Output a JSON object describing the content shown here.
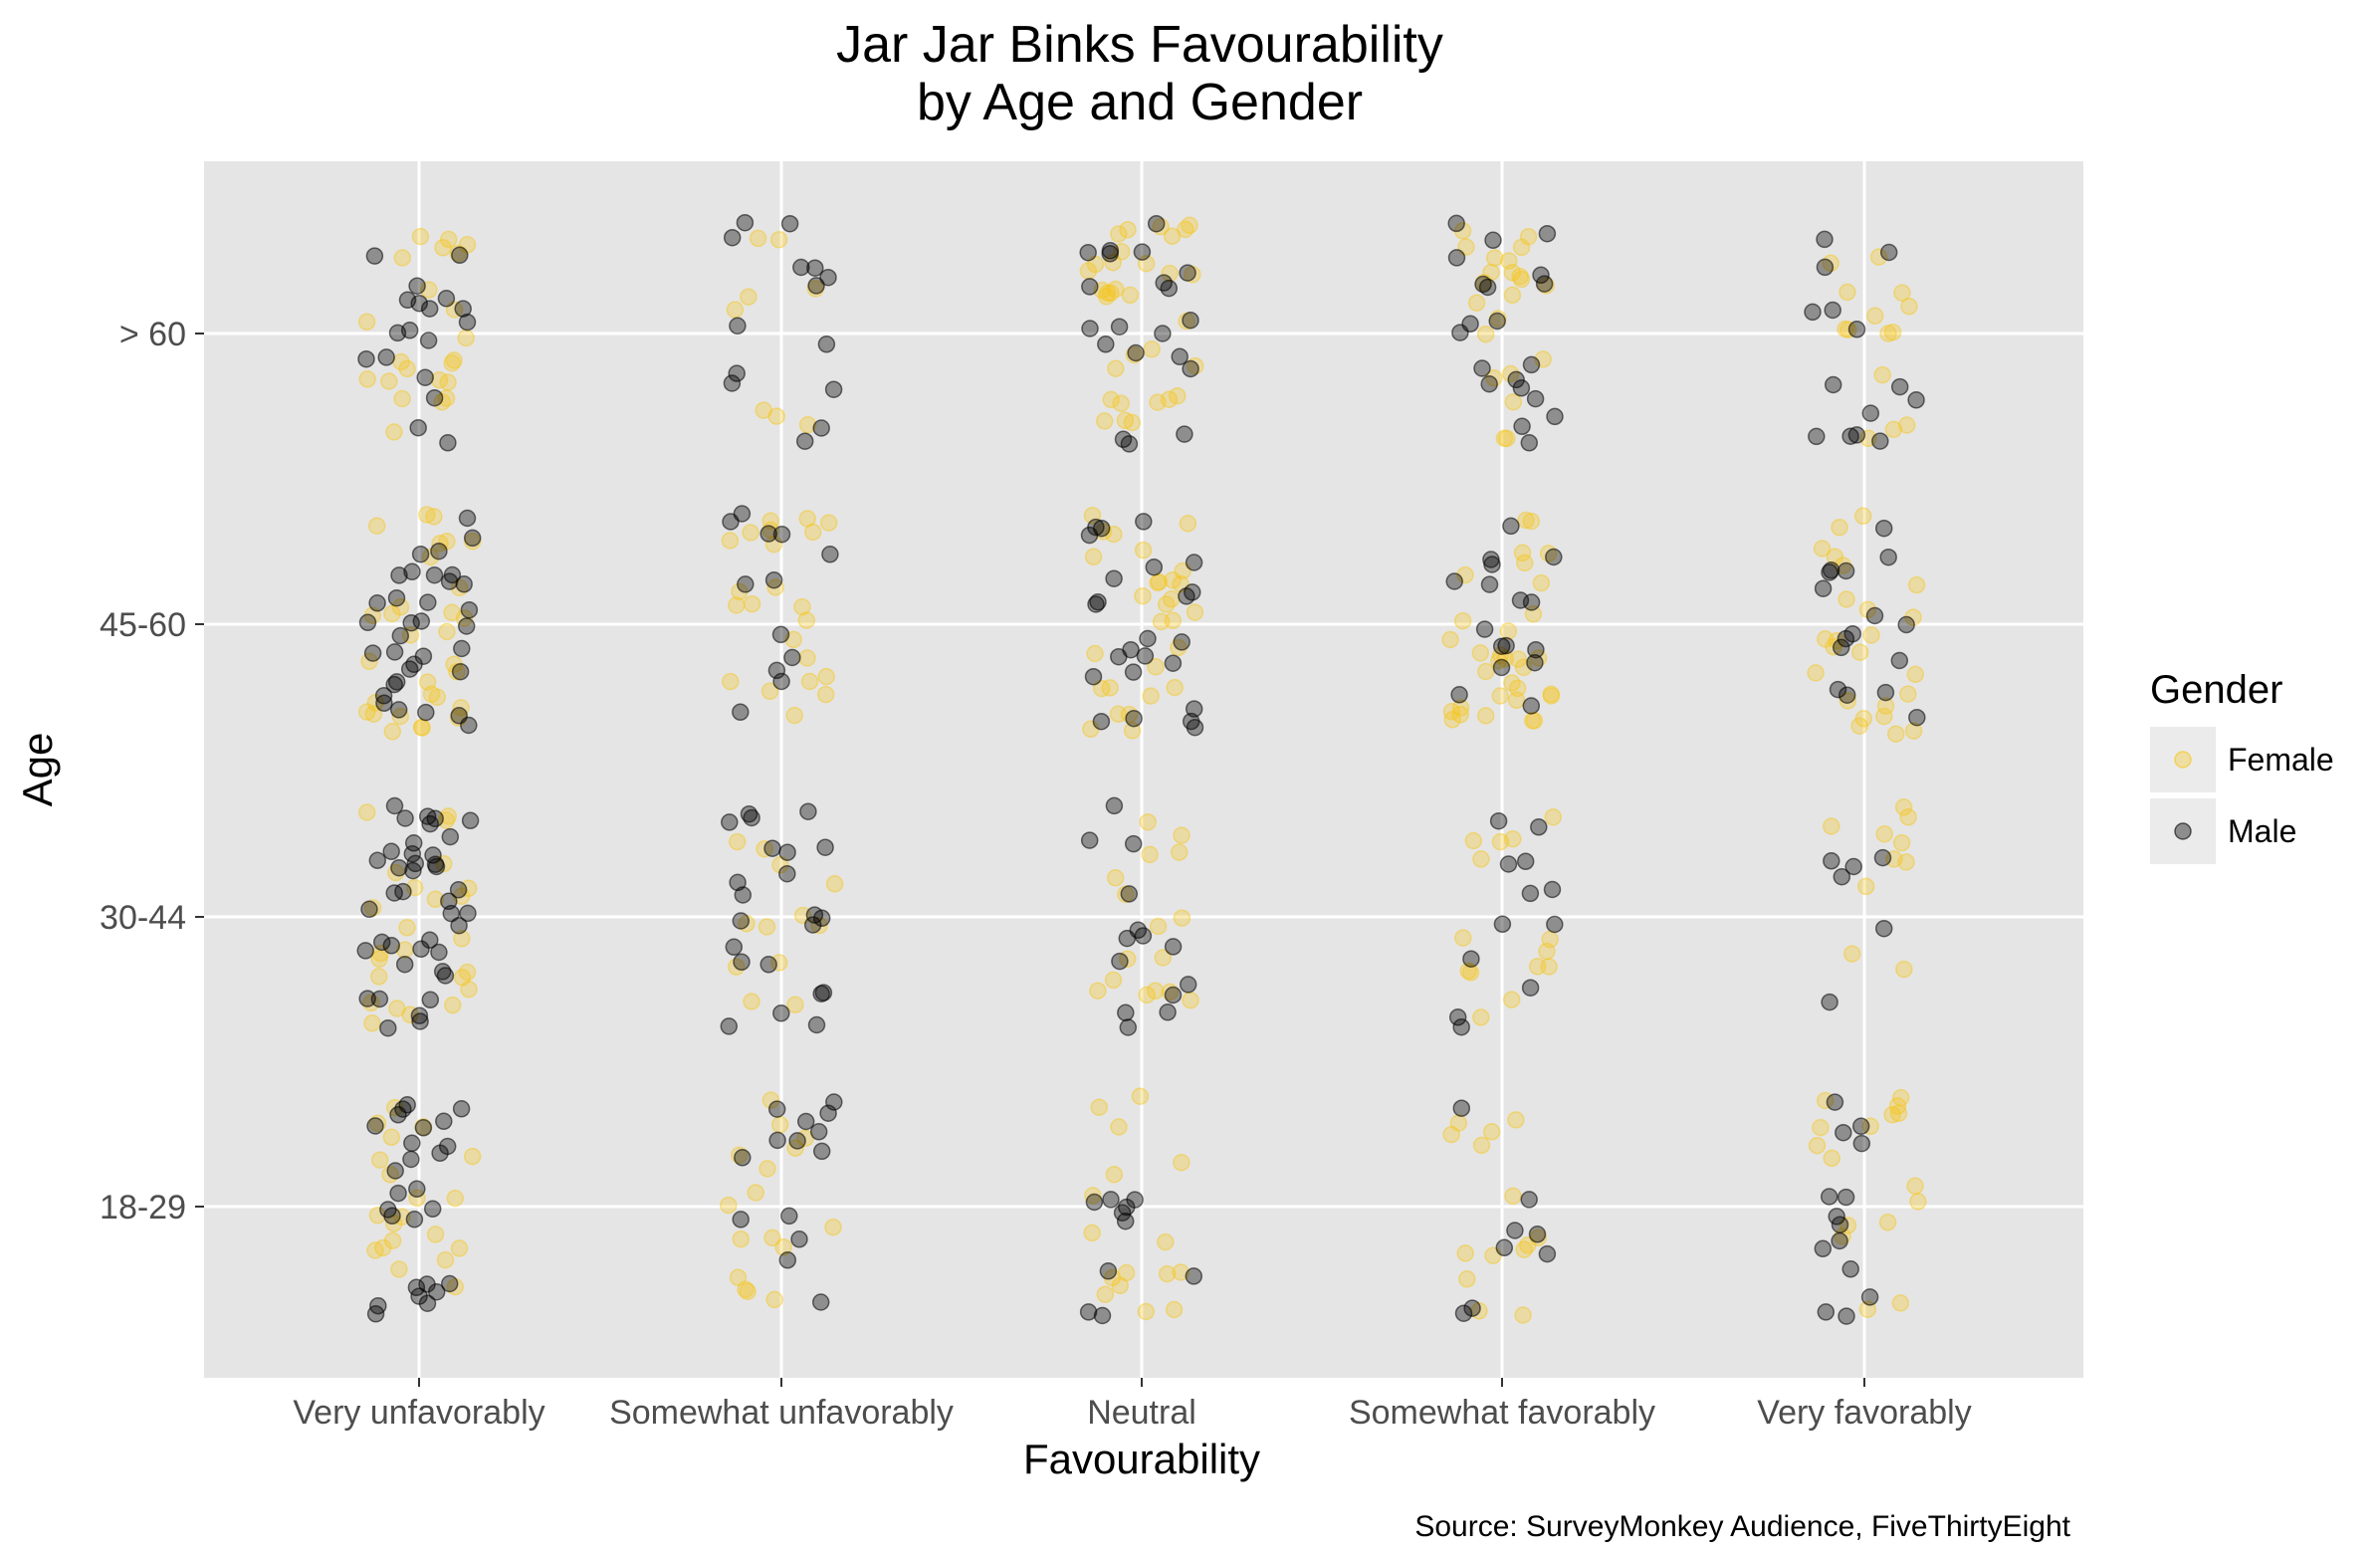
{
  "chart_data": {
    "type": "scatter",
    "jitter": true,
    "title": "Jar Jar Binks Favourability",
    "subtitle": "by Age and Gender",
    "xlabel": "Favourability",
    "ylabel": "Age",
    "categories": [
      "Very unfavorably",
      "Somewhat unfavorably",
      "Neutral",
      "Somewhat favorably",
      "Very favorably"
    ],
    "age_groups": [
      "18-29",
      "30-44",
      "45-60",
      "> 60"
    ],
    "legend": {
      "title": "Gender",
      "placement": "right"
    },
    "caption": "Source: SurveyMonkey Audience, FiveThirtyEight",
    "background": "#e5e5e5",
    "grid": true,
    "series": [
      {
        "name": "Female",
        "color": "#f5c518",
        "counts": [
          [
            20,
            24,
            30,
            22
          ],
          [
            16,
            12,
            22,
            8
          ],
          [
            16,
            16,
            28,
            32
          ],
          [
            14,
            14,
            32,
            22
          ],
          [
            16,
            10,
            24,
            14
          ]
        ]
      },
      {
        "name": "Male",
        "color": "#000000",
        "counts": [
          [
            26,
            40,
            34,
            18
          ],
          [
            14,
            22,
            12,
            14
          ],
          [
            10,
            14,
            24,
            20
          ],
          [
            8,
            12,
            16,
            20
          ],
          [
            14,
            6,
            16,
            14
          ]
        ]
      }
    ]
  }
}
